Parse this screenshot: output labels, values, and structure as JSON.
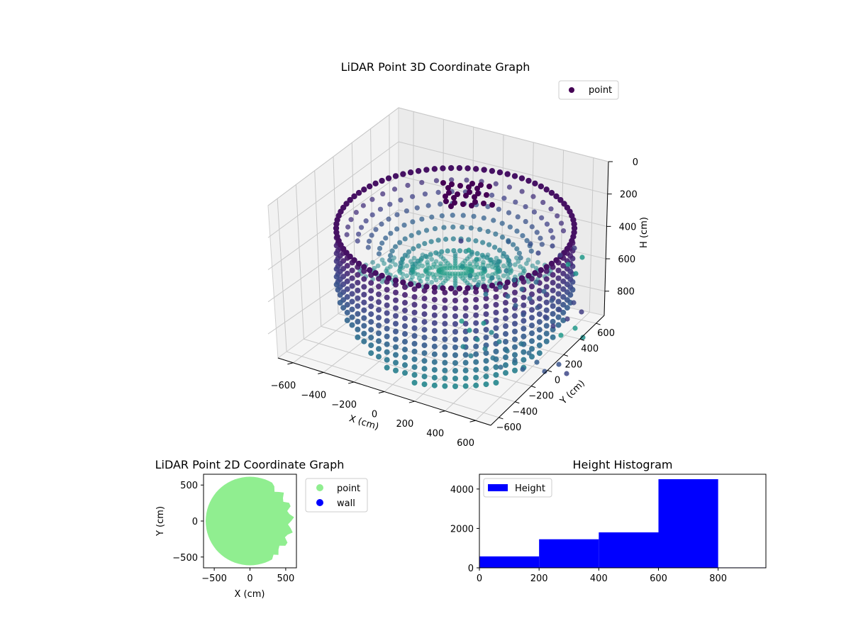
{
  "chart_data": [
    {
      "type": "scatter3d",
      "title": "LiDAR Point 3D Coordinate Graph",
      "xlabel": "X (cm)",
      "ylabel": "Y (cm)",
      "zlabel": "H (cm)",
      "xticks": [
        -600,
        -400,
        -200,
        0,
        200,
        400,
        600
      ],
      "yticks": [
        -600,
        -400,
        -200,
        0,
        200,
        400,
        600
      ],
      "zticks": [
        0,
        200,
        400,
        600,
        800
      ],
      "zlim": [
        0,
        950
      ],
      "zinverted": true,
      "legend": {
        "label": "point",
        "color": "#440154",
        "placement": "top-right"
      },
      "colormap": "viridis",
      "cylinder": {
        "radius_cm": 620,
        "height_top_cm": 0,
        "height_bottom_cm": 900
      }
    },
    {
      "type": "scatter",
      "title": "LiDAR Point 2D Coordinate Graph",
      "xlabel": "X (cm)",
      "ylabel": "Y (cm)",
      "xticks": [
        -500,
        0,
        500
      ],
      "yticks": [
        -500,
        0,
        500
      ],
      "xlim": [
        -650,
        650
      ],
      "ylim": [
        -650,
        650
      ],
      "series": [
        {
          "name": "point",
          "color": "#90ee90"
        },
        {
          "name": "wall",
          "color": "#0000ff"
        }
      ],
      "legend_placement": "outside-right"
    },
    {
      "type": "bar",
      "title": "Height Histogram",
      "xlabel": "",
      "ylabel": "",
      "bin_edges": [
        0,
        200,
        400,
        600,
        800,
        960
      ],
      "values": [
        580,
        1450,
        1800,
        4500,
        20
      ],
      "xticks": [
        0,
        200,
        400,
        600,
        800
      ],
      "yticks": [
        0,
        2000,
        4000
      ],
      "xlim": [
        0,
        960
      ],
      "ylim": [
        0,
        4750
      ],
      "color": "#0000ff",
      "legend": {
        "label": "Height",
        "placement": "top-left"
      }
    }
  ]
}
